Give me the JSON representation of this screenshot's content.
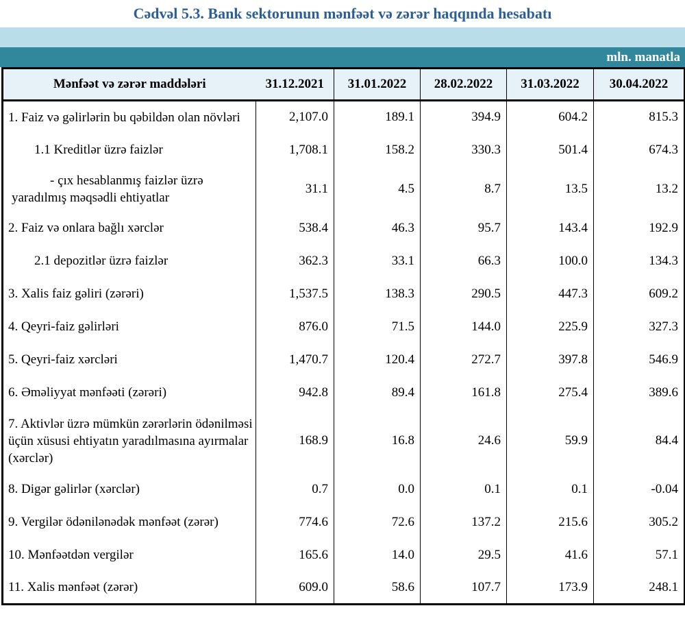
{
  "title": "Cədvəl 5.3. Bank sektorunun mənfəət və zərər haqqında hesabatı",
  "unit_label": "mln. manatla",
  "colors": {
    "title_blue": "#2d5f96",
    "band_light": "#b9dde9",
    "band_teal": "#31879b",
    "header_bg": "#e6f2f8",
    "border": "#000000"
  },
  "table": {
    "header": {
      "items_label": "Mənfəət və zərər maddələri",
      "dates": [
        "31.12.2021",
        "31.01.2022",
        "28.02.2022",
        "31.03.2022",
        "30.04.2022"
      ]
    },
    "rows": [
      {
        "label": "1. Faiz və gəlirlərin bu qəbildən olan növləri",
        "indent": 0,
        "values": [
          "2,107.0",
          "189.1",
          "394.9",
          "604.2",
          "815.3"
        ]
      },
      {
        "label": "1.1 Kreditlər üzrə faizlər",
        "indent": 1,
        "values": [
          "1,708.1",
          "158.2",
          "330.3",
          "501.4",
          "674.3"
        ]
      },
      {
        "label": "-  çıx hesablanmış faizlər üzrə yaradılmış məqsədli ehtiyatlar",
        "indent": 2,
        "values": [
          "31.1",
          "4.5",
          "8.7",
          "13.5",
          "13.2"
        ]
      },
      {
        "label": "2. Faiz və onlara bağlı xərclər",
        "indent": 0,
        "values": [
          "538.4",
          "46.3",
          "95.7",
          "143.4",
          "192.9"
        ]
      },
      {
        "label": "2.1 depozitlər üzrə faizlər",
        "indent": 1,
        "values": [
          "362.3",
          "33.1",
          "66.3",
          "100.0",
          "134.3"
        ]
      },
      {
        "label": "3. Xalis faiz gəliri (zərəri)",
        "indent": 0,
        "values": [
          "1,537.5",
          "138.3",
          "290.5",
          "447.3",
          "609.2"
        ]
      },
      {
        "label": "4. Qeyri-faiz gəlirləri",
        "indent": 0,
        "values": [
          "876.0",
          "71.5",
          "144.0",
          "225.9",
          "327.3"
        ]
      },
      {
        "label": "5. Qeyri-faiz xərcləri",
        "indent": 0,
        "values": [
          "1,470.7",
          "120.4",
          "272.7",
          "397.8",
          "546.9"
        ]
      },
      {
        "label": "6. Əməliyyat mənfəəti (zərəri)",
        "indent": 0,
        "values": [
          "942.8",
          "89.4",
          "161.8",
          "275.4",
          "389.6"
        ]
      },
      {
        "label": "7. Aktivlər üzrə mümkün zərərlərin ödənilməsi üçün xüsusi ehtiyatın yaradılmasına ayırmalar (xərclər)",
        "indent": 0,
        "values": [
          "168.9",
          "16.8",
          "24.6",
          "59.9",
          "84.4"
        ]
      },
      {
        "label": "8. Digər gəlirlər (xərclər)",
        "indent": 0,
        "values": [
          "0.7",
          "0.0",
          "0.1",
          "0.1",
          "-0.04"
        ]
      },
      {
        "label": "9. Vergilər ödənilənədək mənfəət (zərər)",
        "indent": 0,
        "values": [
          "774.6",
          "72.6",
          "137.2",
          "215.6",
          "305.2"
        ]
      },
      {
        "label": "10. Mənfəətdən vergilər",
        "indent": 0,
        "values": [
          "165.6",
          "14.0",
          "29.5",
          "41.6",
          "57.1"
        ]
      },
      {
        "label": "11. Xalis mənfəət (zərər)",
        "indent": 0,
        "values": [
          "609.0",
          "58.6",
          "107.7",
          "173.9",
          "248.1"
        ]
      }
    ]
  }
}
